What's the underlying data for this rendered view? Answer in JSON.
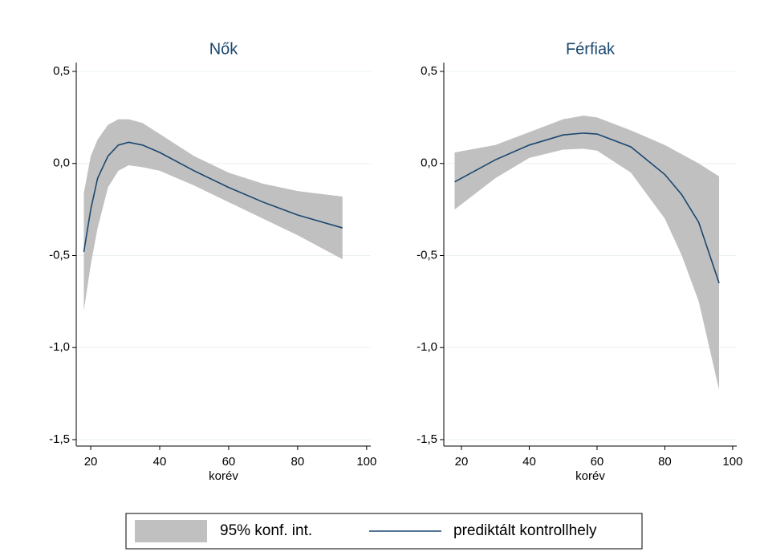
{
  "chart_data": [
    {
      "type": "line",
      "title": "Nők",
      "xlabel": "korév",
      "x": [
        18,
        20,
        22,
        25,
        28,
        31,
        35,
        40,
        50,
        60,
        70,
        80,
        93
      ],
      "series": [
        {
          "color": "#1a476f",
          "values": [
            -0.48,
            -0.25,
            -0.08,
            0.04,
            0.1,
            0.115,
            0.1,
            0.06,
            -0.04,
            -0.13,
            -0.21,
            -0.28,
            -0.35
          ]
        }
      ],
      "band": {
        "color": "#c0c0c0",
        "lower": [
          -0.8,
          -0.55,
          -0.35,
          -0.13,
          -0.04,
          -0.01,
          -0.02,
          -0.04,
          -0.12,
          -0.21,
          -0.3,
          -0.39,
          -0.52
        ],
        "upper": [
          -0.16,
          0.04,
          0.13,
          0.21,
          0.24,
          0.24,
          0.22,
          0.16,
          0.04,
          -0.05,
          -0.11,
          -0.15,
          -0.18
        ]
      },
      "xlim": [
        15.8,
        101.2
      ],
      "ylim": [
        -1.535,
        0.548
      ],
      "xticks": [
        20,
        40,
        60,
        80,
        100
      ],
      "yticks": [
        {
          "value": 0.5,
          "label": "0,5"
        },
        {
          "value": 0,
          "label": "0,0"
        },
        {
          "value": -0.5,
          "label": "-0,5"
        },
        {
          "value": -1,
          "label": "-1,0"
        },
        {
          "value": -1.5,
          "label": "-1,5"
        }
      ],
      "grid": true
    },
    {
      "type": "line",
      "title": "Férfiak",
      "xlabel": "korév",
      "x": [
        18,
        30,
        40,
        50,
        56,
        60,
        70,
        80,
        85,
        90,
        96
      ],
      "series": [
        {
          "color": "#1a476f",
          "values": [
            -0.1,
            0.02,
            0.1,
            0.155,
            0.165,
            0.16,
            0.09,
            -0.06,
            -0.17,
            -0.32,
            -0.65
          ]
        }
      ],
      "band": {
        "color": "#c0c0c0",
        "lower": [
          -0.25,
          -0.08,
          0.03,
          0.075,
          0.08,
          0.07,
          -0.05,
          -0.3,
          -0.5,
          -0.75,
          -1.23
        ],
        "upper": [
          0.06,
          0.1,
          0.17,
          0.24,
          0.26,
          0.25,
          0.18,
          0.1,
          0.05,
          0.0,
          -0.07
        ]
      },
      "xlim": [
        14.8,
        101.2
      ],
      "ylim": [
        -1.535,
        0.548
      ],
      "xticks": [
        20,
        40,
        60,
        80,
        100
      ],
      "yticks": [
        {
          "value": 0.5,
          "label": "0,5"
        },
        {
          "value": 0,
          "label": "0,0"
        },
        {
          "value": -0.5,
          "label": "-0,5"
        },
        {
          "value": -1,
          "label": "-1,0"
        },
        {
          "value": -1.5,
          "label": "-1,5"
        }
      ],
      "grid": true
    }
  ],
  "legend": {
    "band_label": "95% konf. int.",
    "line_label": "prediktált kontrollhely",
    "band_color": "#c0c0c0",
    "line_color": "#1a476f"
  }
}
